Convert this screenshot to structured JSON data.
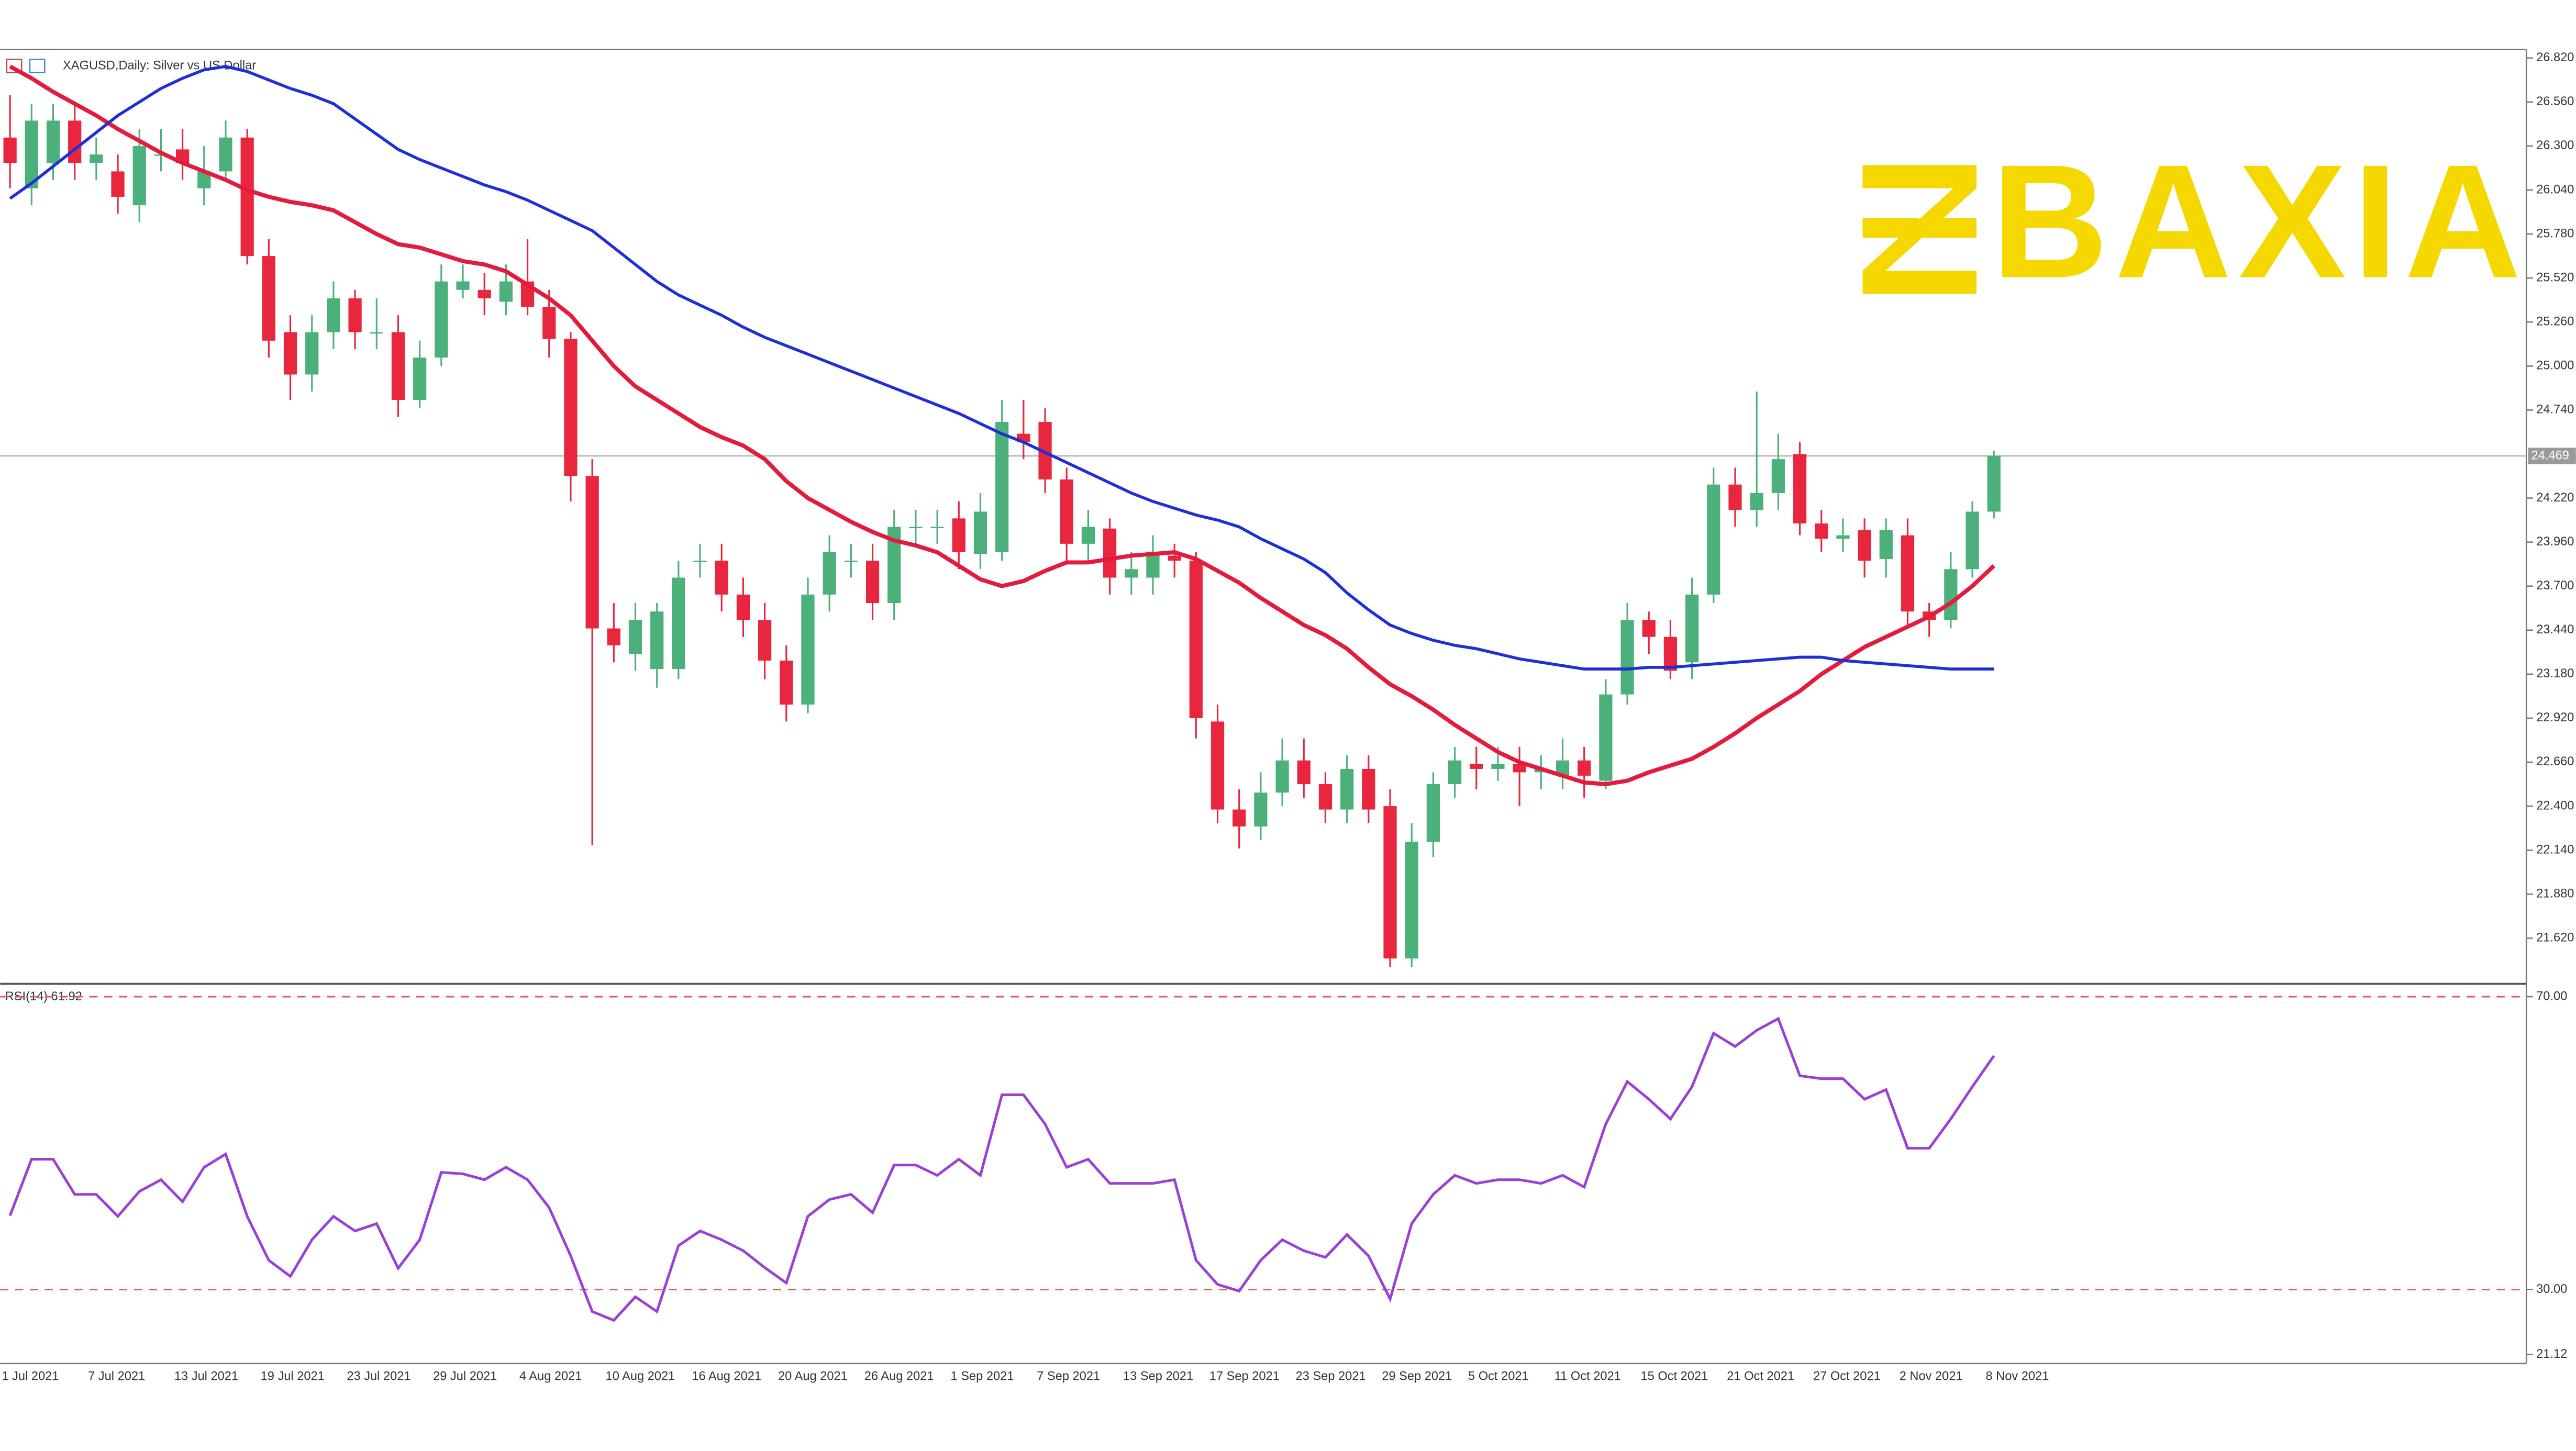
{
  "chart_data": [
    {
      "type": "candlestick",
      "title": "XAGUSD,Daily: Silver vs US Dollar",
      "logo": "BAXIA",
      "categories": [
        "1 Jul 2021",
        null,
        null,
        null,
        "7 Jul 2021",
        null,
        null,
        null,
        "13 Jul 2021",
        null,
        null,
        null,
        "19 Jul 2021",
        null,
        null,
        null,
        "23 Jul 2021",
        null,
        null,
        null,
        "29 Jul 2021",
        null,
        null,
        null,
        "4 Aug 2021",
        null,
        null,
        null,
        "10 Aug 2021",
        null,
        null,
        null,
        "16 Aug 2021",
        null,
        null,
        null,
        "20 Aug 2021",
        null,
        null,
        null,
        "26 Aug 2021",
        null,
        null,
        null,
        "1 Sep 2021",
        null,
        null,
        null,
        "7 Sep 2021",
        null,
        null,
        null,
        "13 Sep 2021",
        null,
        null,
        null,
        "17 Sep 2021",
        null,
        null,
        null,
        "23 Sep 2021",
        null,
        null,
        null,
        "29 Sep 2021",
        null,
        null,
        null,
        "5 Oct 2021",
        null,
        null,
        null,
        "11 Oct 2021",
        null,
        null,
        null,
        "15 Oct 2021",
        null,
        null,
        null,
        "21 Oct 2021",
        null,
        null,
        null,
        "27 Oct 2021",
        null,
        null,
        null,
        "2 Nov 2021",
        null,
        null,
        null,
        "8 Nov 2021"
      ],
      "ohlc": [
        [
          26.35,
          26.6,
          26.05,
          26.2
        ],
        [
          26.05,
          26.55,
          25.95,
          26.45
        ],
        [
          26.2,
          26.55,
          26.1,
          26.45
        ],
        [
          26.45,
          26.55,
          26.1,
          26.2
        ],
        [
          26.2,
          26.35,
          26.1,
          26.25
        ],
        [
          26.15,
          26.25,
          25.9,
          26.0
        ],
        [
          25.95,
          26.4,
          25.85,
          26.3
        ],
        [
          26.25,
          26.4,
          26.15,
          26.25
        ],
        [
          26.28,
          26.4,
          26.1,
          26.2
        ],
        [
          26.05,
          26.3,
          25.95,
          26.15
        ],
        [
          26.15,
          26.45,
          26.1,
          26.35
        ],
        [
          26.35,
          26.4,
          25.6,
          25.65
        ],
        [
          25.65,
          25.75,
          25.05,
          25.15
        ],
        [
          25.2,
          25.3,
          24.8,
          24.95
        ],
        [
          24.95,
          25.3,
          24.85,
          25.2
        ],
        [
          25.2,
          25.5,
          25.1,
          25.4
        ],
        [
          25.4,
          25.45,
          25.1,
          25.2
        ],
        [
          25.2,
          25.4,
          25.1,
          25.2
        ],
        [
          25.2,
          25.3,
          24.7,
          24.8
        ],
        [
          24.8,
          25.15,
          24.75,
          25.05
        ],
        [
          25.05,
          25.6,
          25.0,
          25.5
        ],
        [
          25.45,
          25.6,
          25.4,
          25.5
        ],
        [
          25.45,
          25.55,
          25.3,
          25.4
        ],
        [
          25.38,
          25.6,
          25.3,
          25.5
        ],
        [
          25.5,
          25.75,
          25.3,
          25.35
        ],
        [
          25.35,
          25.45,
          25.05,
          25.16
        ],
        [
          25.16,
          25.2,
          24.2,
          24.35
        ],
        [
          24.35,
          24.45,
          22.17,
          23.45
        ],
        [
          23.45,
          23.6,
          23.25,
          23.35
        ],
        [
          23.3,
          23.6,
          23.2,
          23.5
        ],
        [
          23.21,
          23.6,
          23.1,
          23.55
        ],
        [
          23.21,
          23.85,
          23.15,
          23.75
        ],
        [
          23.85,
          23.95,
          23.75,
          23.85
        ],
        [
          23.85,
          23.95,
          23.55,
          23.65
        ],
        [
          23.65,
          23.75,
          23.4,
          23.5
        ],
        [
          23.5,
          23.6,
          23.15,
          23.26
        ],
        [
          23.26,
          23.35,
          22.9,
          23.0
        ],
        [
          23.0,
          23.75,
          22.95,
          23.65
        ],
        [
          23.65,
          24.0,
          23.55,
          23.9
        ],
        [
          23.85,
          23.95,
          23.75,
          23.85
        ],
        [
          23.85,
          23.95,
          23.5,
          23.6
        ],
        [
          23.6,
          24.15,
          23.5,
          24.05
        ],
        [
          24.05,
          24.15,
          23.95,
          24.05
        ],
        [
          24.05,
          24.15,
          23.95,
          24.05
        ],
        [
          24.1,
          24.2,
          23.8,
          23.9
        ],
        [
          23.89,
          24.25,
          23.8,
          24.14
        ],
        [
          23.9,
          24.8,
          23.85,
          24.67
        ],
        [
          24.6,
          24.8,
          24.45,
          24.55
        ],
        [
          24.67,
          24.75,
          24.25,
          24.33
        ],
        [
          24.33,
          24.4,
          23.85,
          23.95
        ],
        [
          23.95,
          24.15,
          23.85,
          24.05
        ],
        [
          24.04,
          24.1,
          23.65,
          23.75
        ],
        [
          23.75,
          23.9,
          23.65,
          23.8
        ],
        [
          23.75,
          24.0,
          23.65,
          23.9
        ],
        [
          23.88,
          23.95,
          23.75,
          23.85
        ],
        [
          23.85,
          23.9,
          22.8,
          22.92
        ],
        [
          22.9,
          23.0,
          22.3,
          22.38
        ],
        [
          22.38,
          22.5,
          22.15,
          22.28
        ],
        [
          22.28,
          22.6,
          22.2,
          22.48
        ],
        [
          22.48,
          22.8,
          22.4,
          22.67
        ],
        [
          22.67,
          22.8,
          22.45,
          22.53
        ],
        [
          22.53,
          22.6,
          22.3,
          22.38
        ],
        [
          22.38,
          22.7,
          22.3,
          22.62
        ],
        [
          22.62,
          22.7,
          22.3,
          22.38
        ],
        [
          22.4,
          22.5,
          21.45,
          21.5
        ],
        [
          21.5,
          22.3,
          21.45,
          22.19
        ],
        [
          22.19,
          22.6,
          22.1,
          22.53
        ],
        [
          22.53,
          22.75,
          22.45,
          22.67
        ],
        [
          22.65,
          22.75,
          22.5,
          22.62
        ],
        [
          22.62,
          22.75,
          22.55,
          22.65
        ],
        [
          22.65,
          22.75,
          22.4,
          22.6
        ],
        [
          22.6,
          22.7,
          22.5,
          22.62
        ],
        [
          22.58,
          22.8,
          22.5,
          22.67
        ],
        [
          22.67,
          22.75,
          22.45,
          22.58
        ],
        [
          22.55,
          23.15,
          22.5,
          23.06
        ],
        [
          23.06,
          23.6,
          23.0,
          23.5
        ],
        [
          23.5,
          23.55,
          23.3,
          23.4
        ],
        [
          23.4,
          23.5,
          23.15,
          23.2
        ],
        [
          23.25,
          23.75,
          23.15,
          23.65
        ],
        [
          23.65,
          24.4,
          23.6,
          24.3
        ],
        [
          24.3,
          24.4,
          24.05,
          24.15
        ],
        [
          24.15,
          24.85,
          24.05,
          24.25
        ],
        [
          24.25,
          24.6,
          24.15,
          24.45
        ],
        [
          24.48,
          24.55,
          24.0,
          24.07
        ],
        [
          24.07,
          24.15,
          23.9,
          23.98
        ],
        [
          23.98,
          24.1,
          23.9,
          24.0
        ],
        [
          24.03,
          24.1,
          23.75,
          23.85
        ],
        [
          23.86,
          24.1,
          23.75,
          24.03
        ],
        [
          24.0,
          24.1,
          23.45,
          23.55
        ],
        [
          23.55,
          23.6,
          23.4,
          23.5
        ],
        [
          23.5,
          23.9,
          23.45,
          23.8
        ],
        [
          23.8,
          24.2,
          23.75,
          24.14
        ],
        [
          24.14,
          24.5,
          24.1,
          24.469
        ]
      ],
      "up_color": "#4cb07a",
      "down_color": "#e8273e",
      "series": [
        {
          "color": "#e31b3d",
          "width": 2.5,
          "values": [
            26.77,
            26.7,
            26.62,
            26.55,
            26.48,
            26.4,
            26.33,
            26.26,
            26.2,
            26.15,
            26.1,
            26.04,
            26.0,
            25.97,
            25.95,
            25.92,
            25.85,
            25.78,
            25.72,
            25.7,
            25.66,
            25.62,
            25.6,
            25.56,
            25.48,
            25.4,
            25.3,
            25.15,
            25.0,
            24.88,
            24.8,
            24.72,
            24.64,
            24.58,
            24.53,
            24.45,
            24.32,
            24.22,
            24.15,
            24.08,
            24.02,
            23.97,
            23.94,
            23.9,
            23.82,
            23.74,
            23.7,
            23.73,
            23.79,
            23.84,
            23.84,
            23.86,
            23.88,
            23.89,
            23.9,
            23.86,
            23.79,
            23.72,
            23.63,
            23.55,
            23.47,
            23.41,
            23.33,
            23.22,
            23.12,
            23.05,
            22.97,
            22.88,
            22.8,
            22.72,
            22.66,
            22.62,
            22.58,
            22.54,
            22.53,
            22.55,
            22.6,
            22.64,
            22.68,
            22.75,
            22.83,
            22.92,
            23.0,
            23.08,
            23.18,
            23.26,
            23.34,
            23.4,
            23.46,
            23.52,
            23.6,
            23.7,
            23.82
          ]
        },
        {
          "color": "#1f2fd6",
          "width": 1.8,
          "values": [
            25.99,
            26.08,
            26.18,
            26.28,
            26.38,
            26.48,
            26.56,
            26.64,
            26.7,
            26.75,
            26.77,
            26.74,
            26.69,
            26.64,
            26.6,
            26.55,
            26.46,
            26.37,
            26.28,
            26.22,
            26.17,
            26.12,
            26.07,
            26.03,
            25.98,
            25.92,
            25.86,
            25.8,
            25.7,
            25.6,
            25.5,
            25.42,
            25.36,
            25.3,
            25.23,
            25.17,
            25.12,
            25.07,
            25.02,
            24.97,
            24.92,
            24.87,
            24.82,
            24.77,
            24.72,
            24.66,
            24.6,
            24.55,
            24.49,
            24.43,
            24.37,
            24.31,
            24.25,
            24.2,
            24.16,
            24.12,
            24.09,
            24.05,
            23.98,
            23.92,
            23.86,
            23.78,
            23.66,
            23.56,
            23.47,
            23.42,
            23.38,
            23.35,
            23.33,
            23.3,
            23.27,
            23.25,
            23.23,
            23.21,
            23.21,
            23.21,
            23.22,
            23.22,
            23.23,
            23.24,
            23.25,
            23.26,
            23.27,
            23.28,
            23.28,
            23.26,
            23.25,
            23.24,
            23.23,
            23.22,
            23.21,
            23.21,
            23.21
          ]
        }
      ],
      "ylim": [
        21.36,
        26.87
      ],
      "yticks": [
        {
          "value": 26.82,
          "label": "26.820"
        },
        {
          "value": 26.56,
          "label": "26.560"
        },
        {
          "value": 26.3,
          "label": "26.300"
        },
        {
          "value": 26.04,
          "label": "26.040"
        },
        {
          "value": 25.78,
          "label": "25.780"
        },
        {
          "value": 25.52,
          "label": "25.520"
        },
        {
          "value": 25.26,
          "label": "25.260"
        },
        {
          "value": 25.0,
          "label": "25.000"
        },
        {
          "value": 24.74,
          "label": "24.740"
        },
        {
          "value": 24.22,
          "label": "24.220"
        },
        {
          "value": 23.96,
          "label": "23.960"
        },
        {
          "value": 23.7,
          "label": "23.700"
        },
        {
          "value": 23.44,
          "label": "23.440"
        },
        {
          "value": 23.18,
          "label": "23.180"
        },
        {
          "value": 22.92,
          "label": "22.920"
        },
        {
          "value": 22.66,
          "label": "22.660"
        },
        {
          "value": 22.4,
          "label": "22.400"
        },
        {
          "value": 22.14,
          "label": "22.140"
        },
        {
          "value": 21.88,
          "label": "21.880"
        },
        {
          "value": 21.62,
          "label": "21.620"
        }
      ],
      "last_price": 24.469
    },
    {
      "type": "line",
      "label": "RSI(14) 61.92",
      "color": "#9b3fd6",
      "values": [
        40.1,
        47.8,
        47.8,
        43,
        43,
        40,
        43.4,
        45,
        42,
        46.7,
        48.5,
        40,
        34,
        31.8,
        36.8,
        40,
        38,
        39,
        32.9,
        36.8,
        46,
        45.8,
        45,
        46.7,
        45,
        41.2,
        34.6,
        27,
        25.8,
        29,
        27,
        36,
        38,
        36.8,
        35.3,
        33,
        30.9,
        40,
        42.3,
        43,
        40.5,
        47,
        47,
        45.6,
        47.8,
        45.6,
        56.6,
        56.6,
        52.6,
        46.7,
        47.8,
        44.5,
        44.5,
        44.5,
        45,
        34,
        30.7,
        29.8,
        34,
        36.8,
        35.3,
        34.4,
        37.5,
        34.6,
        28.7,
        39,
        43,
        45.6,
        44.5,
        45,
        45,
        44.5,
        45.6,
        44,
        52.6,
        58.4,
        56,
        53.3,
        57.7,
        65,
        63.2,
        65.4,
        67,
        59.2,
        58.8,
        58.8,
        56,
        57.3,
        49.3,
        49.3,
        53.3,
        57.7,
        61.92
      ],
      "ylim": [
        19.9,
        71.3
      ],
      "yticks": [
        {
          "value": 70,
          "label": "70.00"
        },
        {
          "value": 30,
          "label": "30.00"
        },
        21.12
      ],
      "levels": [
        70,
        30
      ],
      "level_color": "#e06060"
    }
  ]
}
